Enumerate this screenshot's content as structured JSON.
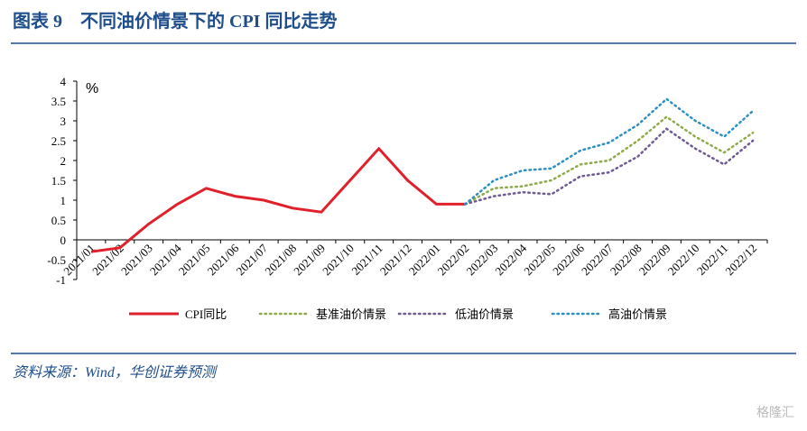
{
  "chart_data": {
    "type": "line",
    "title": "图表 9　不同油价情景下的 CPI 同比走势",
    "y_label": "%",
    "source": "资料来源：Wind，华创证券预测",
    "categories": [
      "2021/01",
      "2021/02",
      "2021/03",
      "2021/04",
      "2021/05",
      "2021/06",
      "2021/07",
      "2021/08",
      "2021/09",
      "2021/10",
      "2021/11",
      "2021/12",
      "2022/01",
      "2022/02",
      "2022/03",
      "2022/04",
      "2022/05",
      "2022/06",
      "2022/07",
      "2022/08",
      "2022/09",
      "2022/10",
      "2022/11",
      "2022/12"
    ],
    "series": [
      {
        "name": "CPI同比",
        "color": "#e0202b",
        "style": "solid",
        "values": [
          -0.3,
          -0.2,
          0.4,
          0.9,
          1.3,
          1.1,
          1.0,
          0.8,
          0.7,
          1.5,
          2.3,
          1.5,
          0.9,
          0.9,
          null,
          null,
          null,
          null,
          null,
          null,
          null,
          null,
          null,
          null
        ]
      },
      {
        "name": "基准油价情景",
        "color": "#8faa4a",
        "style": "dotted",
        "values": [
          null,
          null,
          null,
          null,
          null,
          null,
          null,
          null,
          null,
          null,
          null,
          null,
          null,
          0.9,
          1.3,
          1.35,
          1.5,
          1.9,
          2.0,
          2.5,
          3.1,
          2.6,
          2.2,
          2.7
        ]
      },
      {
        "name": "低油价情景",
        "color": "#6f5a93",
        "style": "dotted",
        "values": [
          null,
          null,
          null,
          null,
          null,
          null,
          null,
          null,
          null,
          null,
          null,
          null,
          null,
          0.9,
          1.1,
          1.2,
          1.15,
          1.6,
          1.7,
          2.1,
          2.8,
          2.3,
          1.9,
          2.5
        ]
      },
      {
        "name": "高油价情景",
        "color": "#2e8fc2",
        "style": "dotted",
        "values": [
          null,
          null,
          null,
          null,
          null,
          null,
          null,
          null,
          null,
          null,
          null,
          null,
          null,
          0.9,
          1.5,
          1.75,
          1.8,
          2.25,
          2.45,
          2.9,
          3.55,
          3.0,
          2.6,
          3.25
        ]
      }
    ],
    "ylim": [
      -1,
      4
    ],
    "yticks": [
      -1,
      -0.5,
      0,
      0.5,
      1,
      1.5,
      2,
      2.5,
      3,
      3.5,
      4
    ]
  },
  "watermark": "格隆汇"
}
